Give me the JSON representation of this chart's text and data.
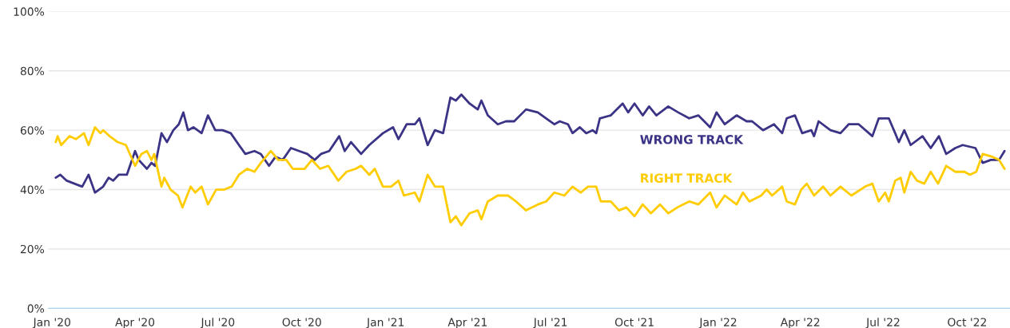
{
  "chart_data": {
    "type": "line",
    "xlim": [
      "2019-12-28",
      "2022-11-17"
    ],
    "xticks": [
      {
        "value": "2020-01-01",
        "label": "Jan '20"
      },
      {
        "value": "2020-04-01",
        "label": "Apr '20"
      },
      {
        "value": "2020-07-01",
        "label": "Jul '20"
      },
      {
        "value": "2020-10-01",
        "label": "Oct '20"
      },
      {
        "value": "2021-01-01",
        "label": "Jan '21"
      },
      {
        "value": "2021-04-01",
        "label": "Apr '21"
      },
      {
        "value": "2021-07-01",
        "label": "Jul '21"
      },
      {
        "value": "2021-10-01",
        "label": "Oct '21"
      },
      {
        "value": "2022-01-01",
        "label": "Jan '22"
      },
      {
        "value": "2022-04-01",
        "label": "Apr '22"
      },
      {
        "value": "2022-07-01",
        "label": "Jul '22"
      },
      {
        "value": "2022-10-01",
        "label": "Oct '22"
      }
    ],
    "ylim": [
      0,
      100
    ],
    "yticks": [
      {
        "value": 0,
        "label": "0%"
      },
      {
        "value": 20,
        "label": "20%"
      },
      {
        "value": 40,
        "label": "40%"
      },
      {
        "value": 60,
        "label": "60%"
      },
      {
        "value": 80,
        "label": "80%"
      },
      {
        "value": 100,
        "label": "100%"
      }
    ],
    "grid": "y",
    "legend": false,
    "marker": "none",
    "line_style": "solid",
    "series": [
      {
        "name": "WRONG TRACK",
        "color": "#3b3486",
        "x": [
          "2020-01-05",
          "2020-01-10",
          "2020-01-17",
          "2020-02-03",
          "2020-02-10",
          "2020-02-17",
          "2020-02-26",
          "2020-03-03",
          "2020-03-08",
          "2020-03-14",
          "2020-03-23",
          "2020-04-01",
          "2020-04-05",
          "2020-04-14",
          "2020-04-19",
          "2020-04-23",
          "2020-04-30",
          "2020-05-06",
          "2020-05-13",
          "2020-05-19",
          "2020-05-24",
          "2020-05-29",
          "2020-06-04",
          "2020-06-13",
          "2020-06-20",
          "2020-06-28",
          "2020-07-06",
          "2020-07-15",
          "2020-07-24",
          "2020-07-31",
          "2020-08-10",
          "2020-08-17",
          "2020-08-26",
          "2020-09-02",
          "2020-09-10",
          "2020-09-19",
          "2020-09-28",
          "2020-10-07",
          "2020-10-15",
          "2020-10-22",
          "2020-10-31",
          "2020-11-11",
          "2020-11-17",
          "2020-11-24",
          "2020-12-05",
          "2020-12-14",
          "2020-12-29",
          "2021-01-09",
          "2021-01-15",
          "2021-01-24",
          "2021-02-02",
          "2021-02-07",
          "2021-02-16",
          "2021-02-24",
          "2021-03-05",
          "2021-03-13",
          "2021-03-19",
          "2021-03-25",
          "2021-04-03",
          "2021-04-12",
          "2021-04-16",
          "2021-04-23",
          "2021-05-04",
          "2021-05-13",
          "2021-05-22",
          "2021-06-04",
          "2021-06-17",
          "2021-06-26",
          "2021-07-05",
          "2021-07-11",
          "2021-07-20",
          "2021-07-25",
          "2021-08-02",
          "2021-08-09",
          "2021-08-16",
          "2021-08-20",
          "2021-08-24",
          "2021-09-05",
          "2021-09-18",
          "2021-09-24",
          "2021-10-01",
          "2021-10-10",
          "2021-10-17",
          "2021-10-25",
          "2021-11-07",
          "2021-11-18",
          "2021-11-30",
          "2021-12-10",
          "2021-12-23",
          "2021-12-30",
          "2022-01-08",
          "2022-01-21",
          "2022-02-01",
          "2022-02-07",
          "2022-02-19",
          "2022-03-03",
          "2022-03-12",
          "2022-03-17",
          "2022-03-26",
          "2022-04-03",
          "2022-04-13",
          "2022-04-16",
          "2022-04-21",
          "2022-05-04",
          "2022-05-15",
          "2022-05-24",
          "2022-06-04",
          "2022-06-19",
          "2022-06-26",
          "2022-07-07",
          "2022-07-14",
          "2022-07-18",
          "2022-07-24",
          "2022-07-31",
          "2022-08-13",
          "2022-08-22",
          "2022-08-31",
          "2022-09-08",
          "2022-09-18",
          "2022-09-26",
          "2022-10-10",
          "2022-10-18",
          "2022-10-27",
          "2022-11-05",
          "2022-11-11"
        ],
        "values": [
          44,
          45,
          43,
          41,
          45,
          39,
          41,
          44,
          43,
          45,
          45,
          53,
          50,
          47,
          49,
          48,
          59,
          56,
          60,
          62,
          66,
          60,
          61,
          59,
          65,
          60,
          60,
          59,
          55,
          52,
          53,
          52,
          48,
          51,
          50,
          54,
          53,
          52,
          50,
          52,
          53,
          58,
          53,
          56,
          52,
          55,
          59,
          61,
          57,
          62,
          62,
          64,
          55,
          60,
          59,
          71,
          70,
          72,
          69,
          67,
          70,
          65,
          62,
          63,
          63,
          67,
          66,
          64,
          62,
          63,
          62,
          59,
          61,
          59,
          60,
          59,
          64,
          65,
          69,
          66,
          69,
          65,
          68,
          65,
          68,
          66,
          64,
          65,
          61,
          66,
          62,
          65,
          63,
          63,
          60,
          62,
          59,
          64,
          65,
          59,
          60,
          58,
          63,
          60,
          59,
          62,
          62,
          58,
          64,
          64,
          59,
          56,
          60,
          55,
          58,
          54,
          58,
          52,
          54,
          55,
          54,
          49,
          50,
          50,
          53
        ]
      },
      {
        "name": "RIGHT TRACK",
        "color": "#ffcc00",
        "x": [
          "2020-01-05",
          "2020-01-07",
          "2020-01-11",
          "2020-01-20",
          "2020-01-27",
          "2020-02-05",
          "2020-02-10",
          "2020-02-17",
          "2020-02-23",
          "2020-02-26",
          "2020-03-04",
          "2020-03-13",
          "2020-03-22",
          "2020-04-01",
          "2020-04-08",
          "2020-04-14",
          "2020-04-19",
          "2020-04-22",
          "2020-04-30",
          "2020-05-03",
          "2020-05-10",
          "2020-05-18",
          "2020-05-23",
          "2020-06-01",
          "2020-06-06",
          "2020-06-13",
          "2020-06-20",
          "2020-06-29",
          "2020-07-08",
          "2020-07-16",
          "2020-07-24",
          "2020-08-02",
          "2020-08-10",
          "2020-08-17",
          "2020-08-28",
          "2020-09-05",
          "2020-09-14",
          "2020-09-21",
          "2020-10-04",
          "2020-10-12",
          "2020-10-21",
          "2020-10-30",
          "2020-11-10",
          "2020-11-19",
          "2020-11-29",
          "2020-12-05",
          "2020-12-14",
          "2020-12-20",
          "2020-12-29",
          "2021-01-07",
          "2021-01-15",
          "2021-01-21",
          "2021-02-02",
          "2021-02-07",
          "2021-02-16",
          "2021-02-24",
          "2021-03-05",
          "2021-03-13",
          "2021-03-19",
          "2021-03-25",
          "2021-04-03",
          "2021-04-12",
          "2021-04-16",
          "2021-04-23",
          "2021-05-04",
          "2021-05-15",
          "2021-05-24",
          "2021-06-04",
          "2021-06-17",
          "2021-06-26",
          "2021-07-05",
          "2021-07-16",
          "2021-07-25",
          "2021-08-03",
          "2021-08-11",
          "2021-08-20",
          "2021-08-25",
          "2021-09-05",
          "2021-09-14",
          "2021-09-22",
          "2021-10-01",
          "2021-10-10",
          "2021-10-19",
          "2021-10-29",
          "2021-11-07",
          "2021-11-17",
          "2021-11-30",
          "2021-12-10",
          "2021-12-23",
          "2021-12-30",
          "2022-01-08",
          "2022-01-21",
          "2022-01-28",
          "2022-02-04",
          "2022-02-17",
          "2022-02-23",
          "2022-03-01",
          "2022-03-12",
          "2022-03-17",
          "2022-03-26",
          "2022-04-02",
          "2022-04-08",
          "2022-04-16",
          "2022-04-26",
          "2022-05-04",
          "2022-05-15",
          "2022-05-27",
          "2022-06-11",
          "2022-06-19",
          "2022-06-26",
          "2022-07-03",
          "2022-07-07",
          "2022-07-14",
          "2022-07-20",
          "2022-07-24",
          "2022-07-31",
          "2022-08-07",
          "2022-08-15",
          "2022-08-22",
          "2022-08-30",
          "2022-09-08",
          "2022-09-18",
          "2022-09-28",
          "2022-10-04",
          "2022-10-11",
          "2022-10-18",
          "2022-10-29",
          "2022-11-05",
          "2022-11-11"
        ],
        "values": [
          56,
          58,
          55,
          58,
          57,
          59,
          55,
          61,
          59,
          60,
          58,
          56,
          55,
          48,
          52,
          53,
          50,
          52,
          41,
          44,
          40,
          38,
          34,
          41,
          39,
          41,
          35,
          40,
          40,
          41,
          45,
          47,
          46,
          49,
          53,
          50,
          50,
          47,
          47,
          50,
          47,
          48,
          43,
          46,
          47,
          48,
          45,
          47,
          41,
          41,
          43,
          38,
          39,
          36,
          45,
          41,
          41,
          29,
          31,
          28,
          32,
          33,
          30,
          36,
          38,
          38,
          36,
          33,
          35,
          36,
          39,
          38,
          41,
          39,
          41,
          41,
          36,
          36,
          33,
          34,
          31,
          35,
          32,
          35,
          32,
          34,
          36,
          35,
          39,
          34,
          38,
          35,
          39,
          36,
          38,
          40,
          38,
          41,
          36,
          35,
          40,
          42,
          38,
          41,
          38,
          41,
          38,
          41,
          42,
          36,
          39,
          36,
          43,
          44,
          39,
          46,
          43,
          42,
          46,
          42,
          48,
          46,
          46,
          45,
          46,
          52,
          51,
          50,
          47
        ]
      }
    ]
  }
}
